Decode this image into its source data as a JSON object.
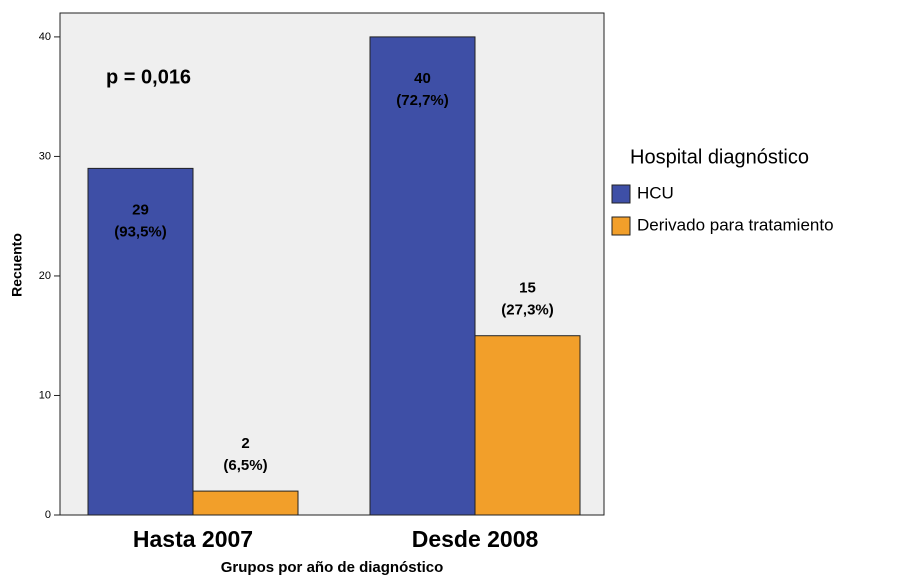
{
  "chart_data": {
    "type": "bar",
    "annotation": "p = 0,016",
    "x_label": "Grupos por año de diagnóstico",
    "y_label": "Recuento",
    "categories": [
      "Hasta 2007",
      "Desde 2008"
    ],
    "legend_title": "Hospital diagnóstico",
    "series": [
      {
        "name": "HCU",
        "color": "#3e4fa6",
        "values": [
          29,
          40
        ],
        "percent_labels": [
          "(93,5%)",
          "(72,7%)"
        ]
      },
      {
        "name": "Derivado para tratamiento",
        "color": "#f29f2a",
        "values": [
          2,
          15
        ],
        "percent_labels": [
          "(6,5%)",
          "(27,3%)"
        ]
      }
    ],
    "ylim": [
      0,
      42
    ],
    "yticks": [
      0,
      10,
      20,
      30,
      40
    ],
    "grid": false
  }
}
